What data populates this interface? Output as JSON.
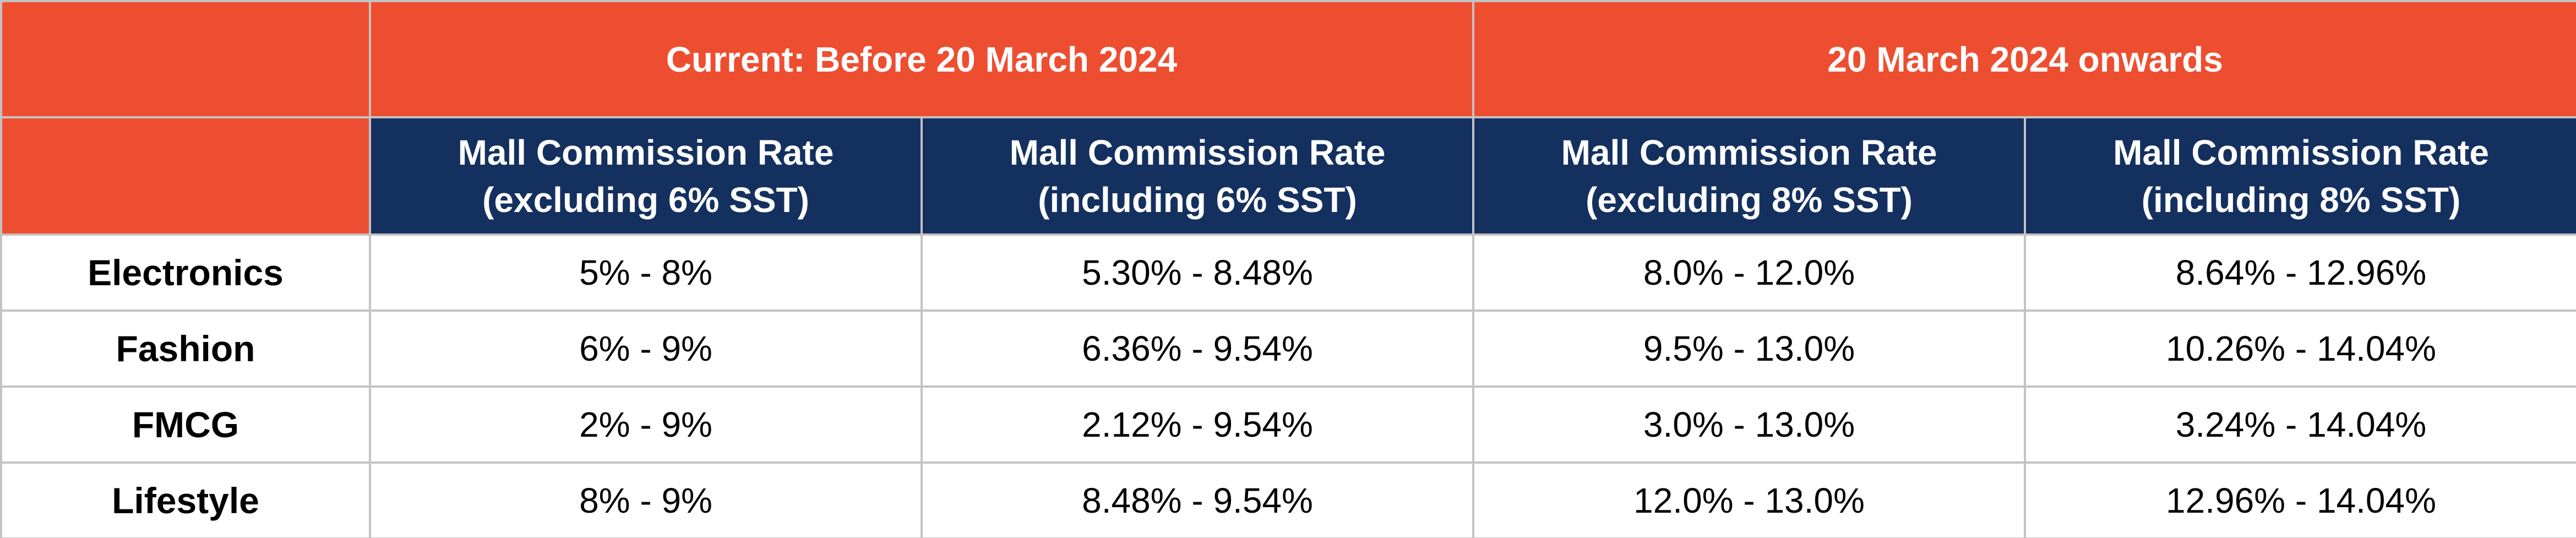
{
  "header": {
    "groups": [
      {
        "label": "Current: Before 20 March 2024"
      },
      {
        "label": "20 March 2024 onwards"
      }
    ],
    "columns": [
      {
        "line1": "Mall Commission Rate",
        "line2": "(excluding 6% SST)"
      },
      {
        "line1": "Mall Commission Rate",
        "line2": "(including 6% SST)"
      },
      {
        "line1": "Mall Commission Rate",
        "line2": "(excluding 8% SST)"
      },
      {
        "line1": "Mall Commission Rate",
        "line2": "(including 8% SST)"
      }
    ]
  },
  "rows": [
    {
      "category": "Electronics",
      "values": [
        "5% - 8%",
        "5.30% - 8.48%",
        "8.0% - 12.0%",
        "8.64% - 12.96%"
      ]
    },
    {
      "category": "Fashion",
      "values": [
        "6% - 9%",
        "6.36% - 9.54%",
        "9.5% - 13.0%",
        "10.26% - 14.04%"
      ]
    },
    {
      "category": "FMCG",
      "values": [
        "2% - 9%",
        "2.12% - 9.54%",
        "3.0% - 13.0%",
        "3.24% - 14.04%"
      ]
    },
    {
      "category": "Lifestyle",
      "values": [
        "8% - 9%",
        "8.48% - 9.54%",
        "12.0% -  13.0%",
        "12.96% - 14.04%"
      ]
    }
  ],
  "colors": {
    "header_orange": "#ee4e30",
    "header_navy": "#14305f",
    "border": "#c3c3c3"
  }
}
